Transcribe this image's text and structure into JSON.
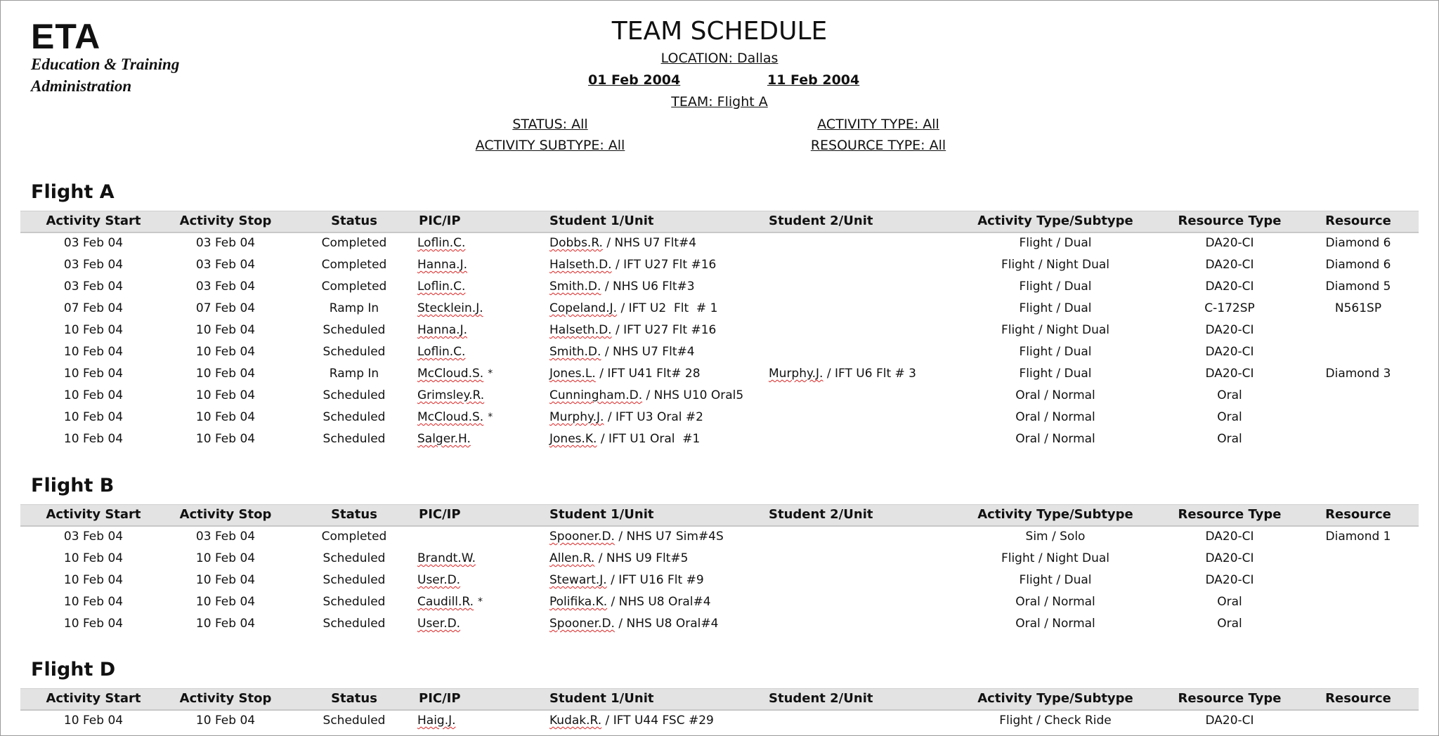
{
  "logo": {
    "acronym": "ETA",
    "line1": "Education & Training",
    "line2": "Administration"
  },
  "header": {
    "title": "TEAM SCHEDULE",
    "location": "LOCATION: Dallas",
    "date_from": "01 Feb 2004",
    "date_to": "11 Feb 2004",
    "team": "TEAM: Flight A",
    "status": "STATUS: All",
    "activity_type": "ACTIVITY TYPE: All",
    "activity_subtype": "ACTIVITY SUBTYPE: All",
    "resource_type": "RESOURCE TYPE: All"
  },
  "columns": [
    "Activity Start",
    "Activity Stop",
    "Status",
    "PIC/IP",
    "Student 1/Unit",
    "Student 2/Unit",
    "Activity Type/Subtype",
    "Resource Type",
    "Resource"
  ],
  "sections": [
    {
      "title": "Flight A",
      "rows": [
        {
          "start": "03 Feb 04",
          "stop": "03 Feb 04",
          "status": "Completed",
          "pic": "Loflin.C.",
          "pic_mark": "",
          "s1_name": "Dobbs.R.",
          "s1_unit": " / NHS U7 Flt#4",
          "s2_name": "",
          "s2_unit": "",
          "activity": "Flight / Dual",
          "resource_type": "DA20-CI",
          "resource": "Diamond 6"
        },
        {
          "start": "03 Feb 04",
          "stop": "03 Feb 04",
          "status": "Completed",
          "pic": "Hanna.J.",
          "pic_mark": "",
          "s1_name": "Halseth.D.",
          "s1_unit": " / IFT U27 Flt #16",
          "s2_name": "",
          "s2_unit": "",
          "activity": "Flight / Night Dual",
          "resource_type": "DA20-CI",
          "resource": "Diamond 6"
        },
        {
          "start": "03 Feb 04",
          "stop": "03 Feb 04",
          "status": "Completed",
          "pic": "Loflin.C.",
          "pic_mark": "",
          "s1_name": "Smith.D.",
          "s1_unit": " / NHS U6 Flt#3",
          "s2_name": "",
          "s2_unit": "",
          "activity": "Flight / Dual",
          "resource_type": "DA20-CI",
          "resource": "Diamond 5"
        },
        {
          "start": "07 Feb 04",
          "stop": "07 Feb 04",
          "status": "Ramp In",
          "pic": "Stecklein.J.",
          "pic_mark": "",
          "s1_name": "Copeland.J.",
          "s1_unit": " / IFT U2  Flt  # 1",
          "s2_name": "",
          "s2_unit": "",
          "activity": "Flight / Dual",
          "resource_type": "C-172SP",
          "resource": "N561SP"
        },
        {
          "start": "10 Feb 04",
          "stop": "10 Feb 04",
          "status": "Scheduled",
          "pic": "Hanna.J.",
          "pic_mark": "",
          "s1_name": "Halseth.D.",
          "s1_unit": " / IFT U27 Flt #16",
          "s2_name": "",
          "s2_unit": "",
          "activity": "Flight / Night Dual",
          "resource_type": "DA20-CI",
          "resource": ""
        },
        {
          "start": "10 Feb 04",
          "stop": "10 Feb 04",
          "status": "Scheduled",
          "pic": "Loflin.C.",
          "pic_mark": "",
          "s1_name": "Smith.D.",
          "s1_unit": " / NHS U7 Flt#4",
          "s2_name": "",
          "s2_unit": "",
          "activity": "Flight / Dual",
          "resource_type": "DA20-CI",
          "resource": ""
        },
        {
          "start": "10 Feb 04",
          "stop": "10 Feb 04",
          "status": "Ramp In",
          "pic": "McCloud.S.",
          "pic_mark": "*",
          "s1_name": "Jones.L.",
          "s1_unit": " / IFT U41 Flt# 28",
          "s2_name": "Murphy.J.",
          "s2_unit": " / IFT U6 Flt # 3",
          "activity": "Flight / Dual",
          "resource_type": "DA20-CI",
          "resource": "Diamond 3"
        },
        {
          "start": "10 Feb 04",
          "stop": "10 Feb 04",
          "status": "Scheduled",
          "pic": "Grimsley.R.",
          "pic_mark": "",
          "s1_name": "Cunningham.D.",
          "s1_unit": " / NHS U10 Oral5",
          "s2_name": "",
          "s2_unit": "",
          "activity": "Oral / Normal",
          "resource_type": "Oral",
          "resource": ""
        },
        {
          "start": "10 Feb 04",
          "stop": "10 Feb 04",
          "status": "Scheduled",
          "pic": "McCloud.S.",
          "pic_mark": "*",
          "s1_name": "Murphy.J.",
          "s1_unit": " / IFT U3 Oral #2",
          "s2_name": "",
          "s2_unit": "",
          "activity": "Oral / Normal",
          "resource_type": "Oral",
          "resource": ""
        },
        {
          "start": "10 Feb 04",
          "stop": "10 Feb 04",
          "status": "Scheduled",
          "pic": "Salger.H.",
          "pic_mark": "",
          "s1_name": "Jones.K.",
          "s1_unit": " / IFT U1 Oral  #1",
          "s2_name": "",
          "s2_unit": "",
          "activity": "Oral / Normal",
          "resource_type": "Oral",
          "resource": ""
        }
      ]
    },
    {
      "title": "Flight B",
      "rows": [
        {
          "start": "03 Feb 04",
          "stop": "03 Feb 04",
          "status": "Completed",
          "pic": "",
          "pic_mark": "",
          "s1_name": "Spooner.D.",
          "s1_unit": " / NHS U7 Sim#4S",
          "s2_name": "",
          "s2_unit": "",
          "activity": "Sim / Solo",
          "resource_type": "DA20-CI",
          "resource": "Diamond 1"
        },
        {
          "start": "10 Feb 04",
          "stop": "10 Feb 04",
          "status": "Scheduled",
          "pic": "Brandt.W.",
          "pic_mark": "",
          "s1_name": "Allen.R.",
          "s1_unit": " / NHS U9 Flt#5",
          "s2_name": "",
          "s2_unit": "",
          "activity": "Flight / Night Dual",
          "resource_type": "DA20-CI",
          "resource": ""
        },
        {
          "start": "10 Feb 04",
          "stop": "10 Feb 04",
          "status": "Scheduled",
          "pic": "User.D.",
          "pic_mark": "",
          "s1_name": "Stewart.J.",
          "s1_unit": " / IFT U16 Flt #9",
          "s2_name": "",
          "s2_unit": "",
          "activity": "Flight / Dual",
          "resource_type": "DA20-CI",
          "resource": ""
        },
        {
          "start": "10 Feb 04",
          "stop": "10 Feb 04",
          "status": "Scheduled",
          "pic": "Caudill.R.",
          "pic_mark": "*",
          "s1_name": "Polifika.K.",
          "s1_unit": " / NHS U8 Oral#4",
          "s2_name": "",
          "s2_unit": "",
          "activity": "Oral / Normal",
          "resource_type": "Oral",
          "resource": ""
        },
        {
          "start": "10 Feb 04",
          "stop": "10 Feb 04",
          "status": "Scheduled",
          "pic": "User.D.",
          "pic_mark": "",
          "s1_name": "Spooner.D.",
          "s1_unit": " / NHS U8 Oral#4",
          "s2_name": "",
          "s2_unit": "",
          "activity": "Oral / Normal",
          "resource_type": "Oral",
          "resource": ""
        }
      ]
    },
    {
      "title": "Flight D",
      "rows": [
        {
          "start": "10 Feb 04",
          "stop": "10 Feb 04",
          "status": "Scheduled",
          "pic": "Haig.J.",
          "pic_mark": "",
          "s1_name": "Kudak.R.",
          "s1_unit": " / IFT U44 FSC #29",
          "s2_name": "",
          "s2_unit": "",
          "activity": "Flight / Check Ride",
          "resource_type": "DA20-CI",
          "resource": ""
        }
      ]
    }
  ]
}
